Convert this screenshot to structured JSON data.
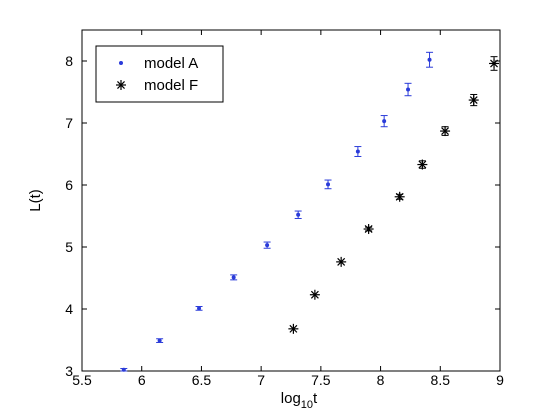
{
  "chart_data": {
    "type": "scatter",
    "title": "",
    "xlabel": {
      "base": "log",
      "sub": "10",
      "var": "t"
    },
    "ylabel": "L(t)",
    "xlim": [
      5.5,
      9
    ],
    "ylim": [
      3,
      8.5
    ],
    "xticks": [
      "5.5",
      "6",
      "6.5",
      "7",
      "7.5",
      "8",
      "8.5",
      "9"
    ],
    "yticks": [
      "3",
      "4",
      "5",
      "6",
      "7",
      "8"
    ],
    "legend_position": "top-left",
    "series": [
      {
        "name": "model A",
        "marker": "dot",
        "color": "#2a3bd9",
        "points": [
          {
            "x": 5.85,
            "y": 3.02,
            "err": 0.02
          },
          {
            "x": 6.15,
            "y": 3.49,
            "err": 0.03
          },
          {
            "x": 6.48,
            "y": 4.01,
            "err": 0.03
          },
          {
            "x": 6.77,
            "y": 4.51,
            "err": 0.04
          },
          {
            "x": 7.05,
            "y": 5.03,
            "err": 0.05
          },
          {
            "x": 7.31,
            "y": 5.52,
            "err": 0.06
          },
          {
            "x": 7.56,
            "y": 6.01,
            "err": 0.07
          },
          {
            "x": 7.81,
            "y": 6.54,
            "err": 0.08
          },
          {
            "x": 8.03,
            "y": 7.03,
            "err": 0.09
          },
          {
            "x": 8.23,
            "y": 7.54,
            "err": 0.1
          },
          {
            "x": 8.41,
            "y": 8.02,
            "err": 0.12
          }
        ]
      },
      {
        "name": "model F",
        "marker": "asterisk",
        "color": "#000000",
        "points": [
          {
            "x": 7.27,
            "y": 3.68,
            "err": 0.0
          },
          {
            "x": 7.45,
            "y": 4.23,
            "err": 0.0
          },
          {
            "x": 7.67,
            "y": 4.76,
            "err": 0.0
          },
          {
            "x": 7.9,
            "y": 5.29,
            "err": 0.03
          },
          {
            "x": 8.16,
            "y": 5.81,
            "err": 0.04
          },
          {
            "x": 8.35,
            "y": 6.33,
            "err": 0.06
          },
          {
            "x": 8.54,
            "y": 6.87,
            "err": 0.07
          },
          {
            "x": 8.78,
            "y": 7.37,
            "err": 0.09
          },
          {
            "x": 8.95,
            "y": 7.96,
            "err": 0.11
          }
        ]
      }
    ]
  }
}
